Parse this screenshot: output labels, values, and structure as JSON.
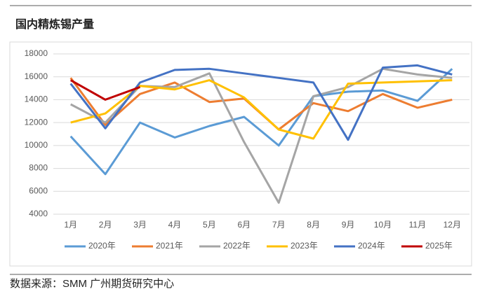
{
  "chart_data": {
    "type": "line",
    "title": "国内精炼锡产量",
    "source": "数据来源：SMM  广州期货研究中心",
    "categories": [
      "1月",
      "2月",
      "3月",
      "4月",
      "5月",
      "6月",
      "7月",
      "8月",
      "9月",
      "10月",
      "11月",
      "12月"
    ],
    "ylim": [
      4000,
      18000
    ],
    "yticks": [
      4000,
      6000,
      8000,
      10000,
      12000,
      14000,
      16000,
      18000
    ],
    "grid": true,
    "legend": "bottom",
    "series": [
      {
        "name": "2020年",
        "color": "#5b9bd5",
        "values": [
          10800,
          7500,
          12000,
          10700,
          11700,
          12500,
          10000,
          14300,
          14700,
          14800,
          13900,
          16700
        ]
      },
      {
        "name": "2021年",
        "color": "#ed7d31",
        "values": [
          15900,
          11800,
          14500,
          15500,
          13800,
          14100,
          11400,
          13700,
          13000,
          14500,
          13300,
          14000
        ]
      },
      {
        "name": "2022年",
        "color": "#a5a5a5",
        "values": [
          13600,
          12000,
          15200,
          15100,
          16300,
          10300,
          5000,
          14300,
          15100,
          16700,
          16200,
          15900
        ]
      },
      {
        "name": "2023年",
        "color": "#ffc000",
        "values": [
          12000,
          12800,
          15200,
          14900,
          15700,
          14200,
          11400,
          10600,
          15400,
          15500,
          15600,
          15700
        ]
      },
      {
        "name": "2024年",
        "color": "#4472c4",
        "values": [
          15400,
          11500,
          15500,
          16600,
          16700,
          16300,
          15900,
          15500,
          10500,
          16800,
          17000,
          16200
        ]
      },
      {
        "name": "2025年",
        "color": "#c00000",
        "values": [
          15700,
          14000,
          15100,
          null,
          null,
          null,
          null,
          null,
          null,
          null,
          null,
          null
        ]
      }
    ]
  }
}
